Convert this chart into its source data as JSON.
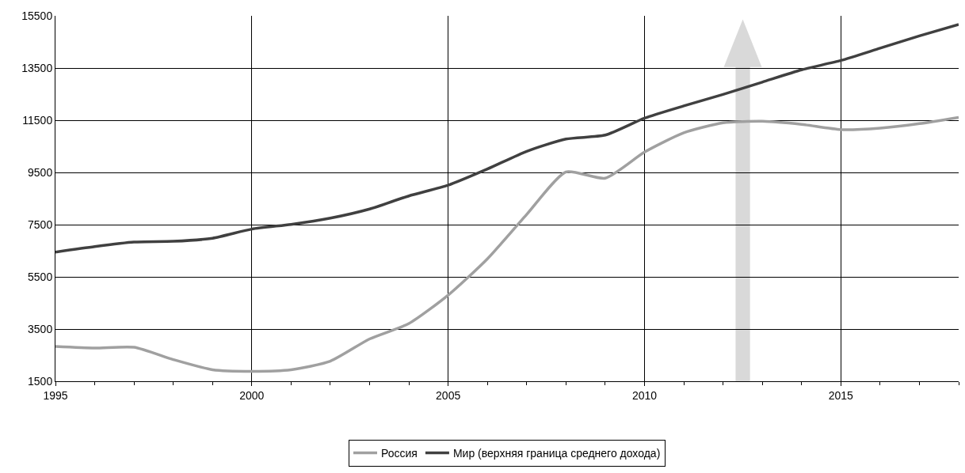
{
  "chart_data": {
    "type": "line",
    "x": [
      1995,
      1996,
      1997,
      1998,
      1999,
      2000,
      2001,
      2002,
      2003,
      2004,
      2005,
      2006,
      2007,
      2008,
      2009,
      2010,
      2011,
      2012,
      2013,
      2014,
      2015,
      2016,
      2017,
      2018
    ],
    "series": [
      {
        "name": "Россия",
        "color": "#a0a0a0",
        "values": [
          2830,
          2770,
          2800,
          2330,
          1940,
          1880,
          1940,
          2270,
          3120,
          3710,
          4800,
          6190,
          7890,
          9520,
          9280,
          10280,
          11020,
          11400,
          11460,
          11340,
          11140,
          11200,
          11370,
          11610
        ]
      },
      {
        "name": "Мир (верхняя граница среднего дохода)",
        "color": "#404040",
        "values": [
          6450,
          6660,
          6830,
          6860,
          6980,
          7330,
          7510,
          7750,
          8100,
          8600,
          9010,
          9630,
          10310,
          10780,
          10930,
          11580,
          12050,
          12490,
          12960,
          13430,
          13790,
          14260,
          14730,
          15170
        ]
      }
    ],
    "xlim": [
      1995,
      2018
    ],
    "xticks": [
      1995,
      2000,
      2005,
      2010,
      2015
    ],
    "ylim": [
      1500,
      15500
    ],
    "yticks": [
      1500,
      3500,
      5500,
      7500,
      9500,
      11500,
      13500,
      15500
    ],
    "grid": true,
    "legend": "bottom",
    "marker": "none",
    "line_style": "solid"
  }
}
